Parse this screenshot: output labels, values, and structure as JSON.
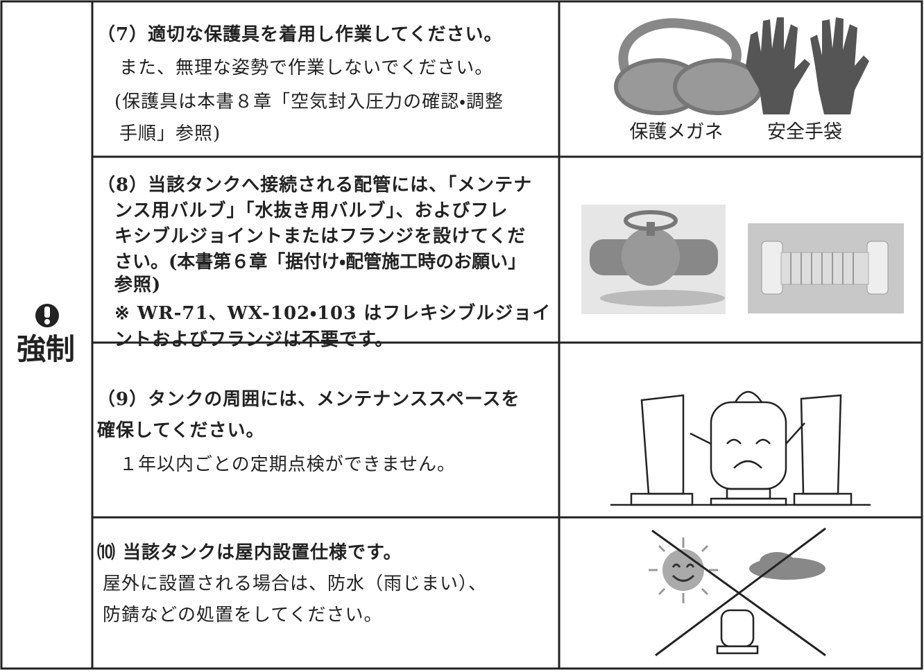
{
  "label": "強制",
  "rows": [
    {
      "lines": [
        "（7）適切な保護具を着用し作業してください。",
        "また、無理な姿勢で作業しないでください。",
        "(保護具は本書８章「空気封入圧力の確認・調整",
        "手順」参照)"
      ],
      "captions": [
        "保護メガネ",
        "安全手袋"
      ]
    },
    {
      "lines": [
        "（8）当該タンクへ接続される配管には、「メンテナ",
        "ンス用バルブ」「水抜き用バルブ」、およびフレ",
        "キシブルジョイントまたはフランジを設けてくだ",
        "さい。(本書第６章「据付け・配管施工時のお願い」",
        "参照)",
        "※ WR-71、WX-102・103 はフレキシブルジョイ",
        "ントおよびフランジは不要です。"
      ]
    },
    {
      "lines": [
        "（9）タンクの周囲には、メンテナンススペースを",
        "確保してください。",
        "１年以内ごとの定期点検ができません。"
      ]
    },
    {
      "lines": [
        "⑽ 当該タンクは屋内設置仕様です。",
        "屋外に設置される場合は、防水（雨じまい）、",
        "防錆などの処置をしてください。"
      ]
    }
  ]
}
